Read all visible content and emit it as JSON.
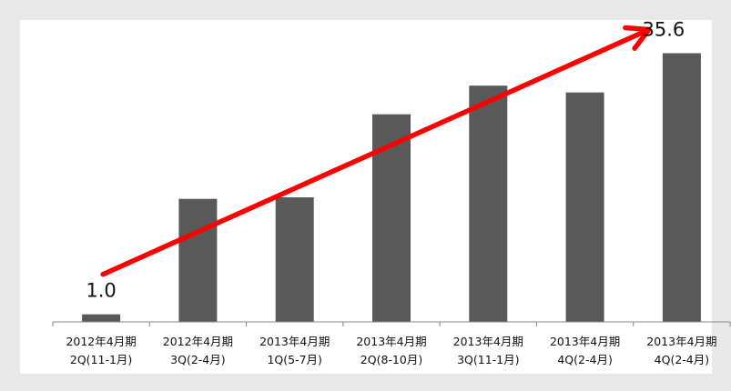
{
  "chart_data": {
    "type": "bar",
    "categories": [
      [
        "2012年4月期",
        "2Q(11-1月)"
      ],
      [
        "2012年4月期",
        "3Q(2-4月)"
      ],
      [
        "2013年4月期",
        "1Q(5-7月)"
      ],
      [
        "2013年4月期",
        "2Q(8-10月)"
      ],
      [
        "2013年4月期",
        "3Q(11-1月)"
      ],
      [
        "2013年4月期",
        "4Q(2-4月)"
      ],
      [
        "2013年4月期",
        "4Q(2-4月)"
      ]
    ],
    "values": [
      1.0,
      16.3,
      16.5,
      27.5,
      31.3,
      30.4,
      35.6
    ],
    "ylim": [
      0,
      40
    ],
    "grid": false,
    "legend": "none",
    "data_labels": [
      {
        "index": 0,
        "text": "1.0"
      },
      {
        "index": 6,
        "text": "35.6"
      }
    ],
    "trend_arrow": {
      "from_index": 0,
      "to_index": 6
    },
    "colors": {
      "bar": "#595959",
      "arrow": "#ff0000",
      "plot_bg": "#ffffff",
      "page_bg": "#e8e8e8"
    }
  }
}
